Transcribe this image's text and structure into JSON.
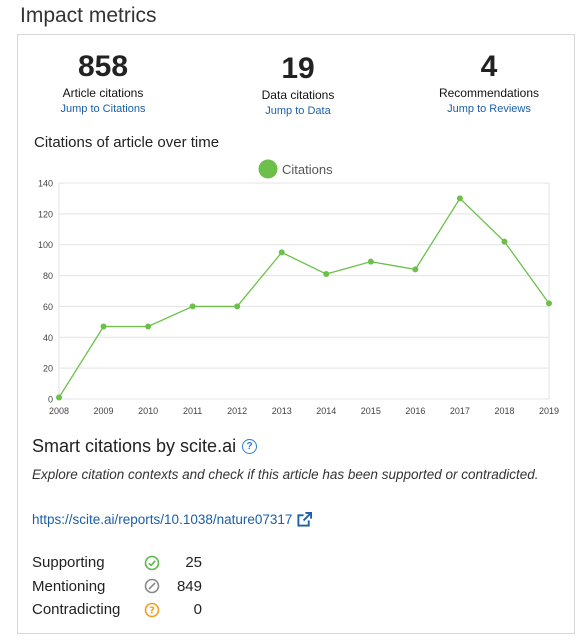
{
  "page": {
    "title": "Impact metrics"
  },
  "metrics": [
    {
      "value": "858",
      "label": "Article citations",
      "link": "Jump to Citations"
    },
    {
      "value": "19",
      "label": "Data citations",
      "link": "Jump to Data"
    },
    {
      "value": "4",
      "label": "Recommendations",
      "link": "Jump to Reviews"
    }
  ],
  "chart_data": {
    "type": "line",
    "title": "Citations of article over time",
    "x": [
      2008,
      2009,
      2010,
      2011,
      2012,
      2013,
      2014,
      2015,
      2016,
      2017,
      2018,
      2019
    ],
    "series": [
      {
        "name": "Citations",
        "values": [
          1,
          47,
          47,
          60,
          60,
          95,
          81,
          89,
          84,
          130,
          102,
          62
        ],
        "color": "#6cc04a"
      }
    ],
    "yticks": [
      0,
      20,
      40,
      60,
      80,
      100,
      120,
      140
    ],
    "ylim": [
      0,
      140
    ],
    "xlabel": "",
    "ylabel": "",
    "grid": true,
    "legend": "top-center"
  },
  "scite": {
    "title": "Smart citations by scite.ai",
    "description": "Explore citation contexts and check if this article has been supported or contradicted.",
    "link": "https://scite.ai/reports/10.1038/nature07317",
    "stats": [
      {
        "label": "Supporting",
        "count": "25",
        "icon": "check-circle-icon",
        "color": "#5bb84a"
      },
      {
        "label": "Mentioning",
        "count": "849",
        "icon": "slash-circle-icon",
        "color": "#888888"
      },
      {
        "label": "Contradicting",
        "count": "0",
        "icon": "question-circle-icon",
        "color": "#f0a020"
      }
    ]
  }
}
